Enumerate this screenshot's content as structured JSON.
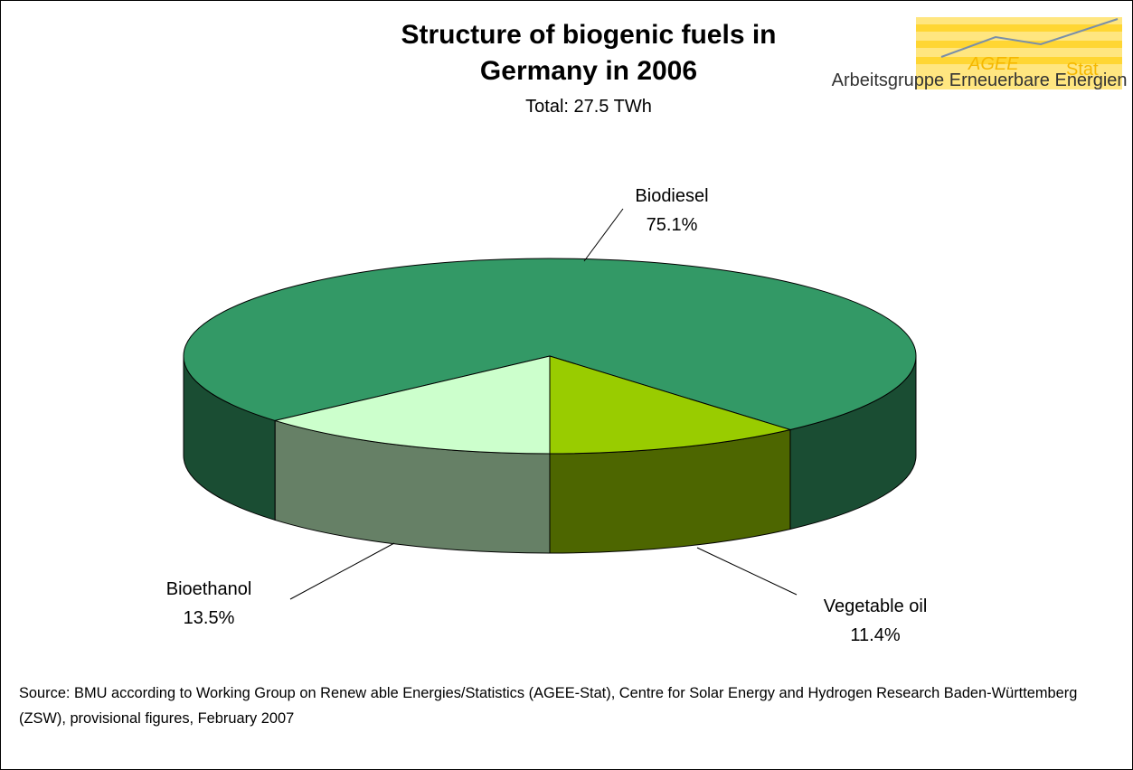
{
  "chart_data": {
    "type": "pie",
    "title": "Structure of biogenic fuels in Germany in 2006",
    "subtitle": "Total: 27.5 TWh",
    "categories": [
      "Biodiesel",
      "Vegetable oil",
      "Bioethanol"
    ],
    "values": [
      75.1,
      11.4,
      13.5
    ],
    "value_labels": [
      "75.1%",
      "11.4%",
      "13.5%"
    ],
    "colors": [
      "#339966",
      "#99cc00",
      "#ccffcc"
    ],
    "note": "Source: BMU according to Working Group on Renew able Energies/Statistics (AGEE-Stat), Centre for Solar Energy and Hydrogen Research Baden-Württemberg (ZSW), provisional figures, February 2007"
  },
  "logo": {
    "name": "AGEE",
    "suffix": "Stat",
    "caption": "Arbeitsgruppe Erneuerbare Energien - Statistik"
  }
}
